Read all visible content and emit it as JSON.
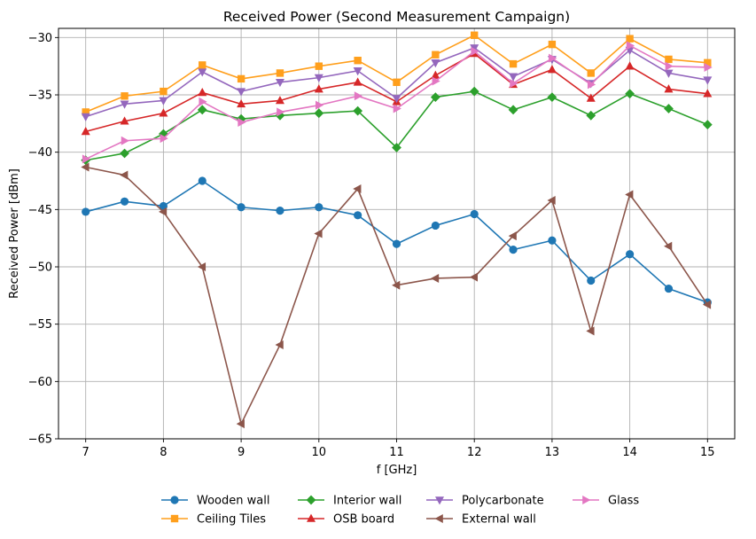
{
  "chart_data": {
    "type": "line",
    "title": "Received Power (Second Measurement Campaign)",
    "xlabel": "f [GHz]",
    "ylabel": "Received Power [dBm]",
    "xlim": [
      6.65,
      15.35
    ],
    "ylim": [
      -65,
      -29.2
    ],
    "xticks": [
      7,
      8,
      9,
      10,
      11,
      12,
      13,
      14,
      15
    ],
    "yticks": [
      -65,
      -60,
      -55,
      -50,
      -45,
      -40,
      -35,
      -30
    ],
    "grid": true,
    "legend_position": "bottom-center",
    "x": [
      7,
      7.5,
      8,
      8.5,
      9,
      9.5,
      10,
      10.5,
      11,
      11.5,
      12,
      12.5,
      13,
      13.5,
      14,
      14.5,
      15
    ],
    "series": [
      {
        "name": "Wooden wall",
        "color": "#1f77b4",
        "marker": "circle",
        "values": [
          -45.2,
          -44.3,
          -44.7,
          -42.5,
          -44.8,
          -45.1,
          -44.8,
          -45.5,
          -48.0,
          -46.4,
          -45.4,
          -48.5,
          -47.7,
          -51.2,
          -48.9,
          -51.9,
          -53.1
        ]
      },
      {
        "name": "Ceiling Tiles",
        "color": "#ff9f1c",
        "marker": "square",
        "values": [
          -36.5,
          -35.1,
          -34.7,
          -32.4,
          -33.6,
          -33.1,
          -32.5,
          -32.0,
          -33.9,
          -31.5,
          -29.8,
          -32.3,
          -30.6,
          -33.1,
          -30.1,
          -31.9,
          -32.2
        ]
      },
      {
        "name": "Interior wall",
        "color": "#2ca02c",
        "marker": "diamond",
        "values": [
          -40.7,
          -40.1,
          -38.4,
          -36.3,
          -37.1,
          -36.8,
          -36.6,
          -36.4,
          -39.6,
          -35.2,
          -34.7,
          -36.3,
          -35.2,
          -36.8,
          -34.9,
          -36.2,
          -37.6
        ]
      },
      {
        "name": "OSB board",
        "color": "#d62728",
        "marker": "triangle-up",
        "values": [
          -38.2,
          -37.3,
          -36.6,
          -34.8,
          -35.8,
          -35.5,
          -34.5,
          -33.9,
          -35.6,
          -33.3,
          -31.4,
          -34.1,
          -32.8,
          -35.3,
          -32.5,
          -34.5,
          -34.9
        ]
      },
      {
        "name": "Polycarbonate",
        "color": "#9467bd",
        "marker": "triangle-down",
        "values": [
          -36.9,
          -35.8,
          -35.5,
          -33.0,
          -34.7,
          -33.9,
          -33.5,
          -32.9,
          -35.3,
          -32.2,
          -30.9,
          -33.4,
          -31.9,
          -34.0,
          -31.1,
          -33.1,
          -33.7
        ]
      },
      {
        "name": "External wall",
        "color": "#8c564b",
        "marker": "triangle-left",
        "values": [
          -41.3,
          -42.0,
          -45.2,
          -50.0,
          -63.7,
          -56.8,
          -47.1,
          -43.2,
          -51.6,
          -51.0,
          -50.9,
          -47.3,
          -44.2,
          -55.6,
          -43.7,
          -48.2,
          -53.3
        ]
      },
      {
        "name": "Glass",
        "color": "#e377c2",
        "marker": "triangle-right",
        "values": [
          -40.6,
          -39.0,
          -38.8,
          -35.6,
          -37.4,
          -36.5,
          -35.9,
          -35.1,
          -36.2,
          -33.8,
          -31.2,
          -34.0,
          -31.8,
          -34.1,
          -30.7,
          -32.5,
          -32.6
        ]
      }
    ]
  }
}
